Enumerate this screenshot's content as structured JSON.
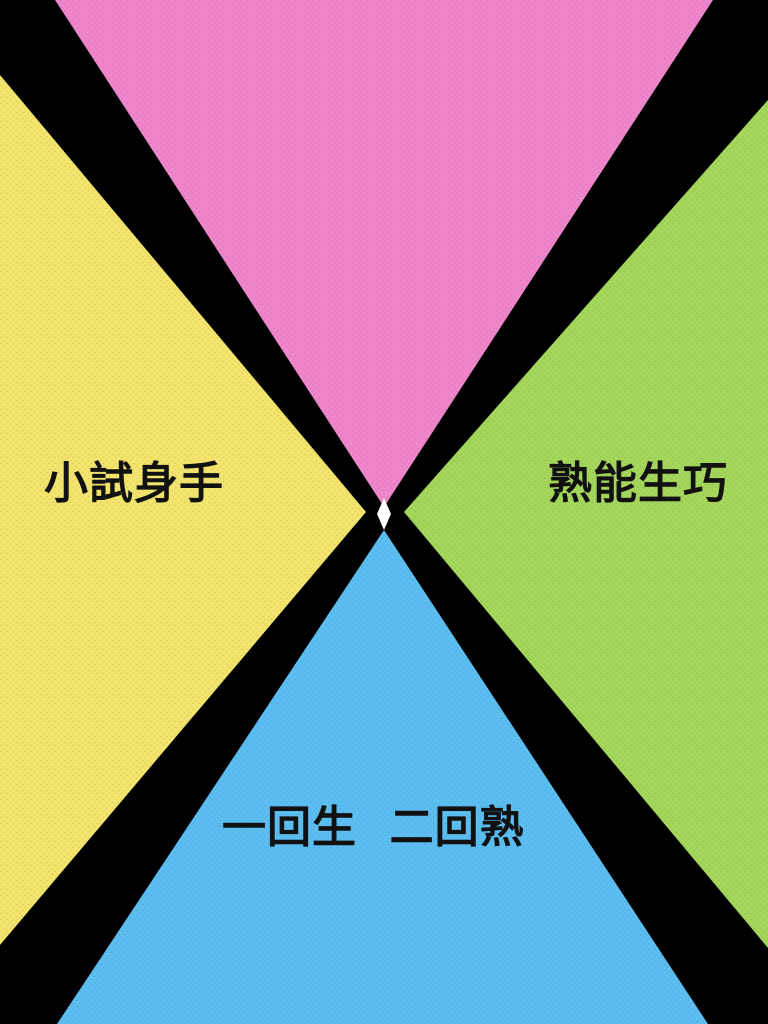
{
  "options": {
    "left": {
      "label": "小試身手",
      "color": "#F2E46C"
    },
    "right": {
      "label": "熟能生巧",
      "color": "#A3D65A"
    },
    "bottom": {
      "label": "一回生  二回熟",
      "color": "#5BBDF0"
    },
    "top": {
      "color": "#EF86CB"
    }
  },
  "divider_color": "#000000",
  "center_mark_color": "#FFFFFF"
}
